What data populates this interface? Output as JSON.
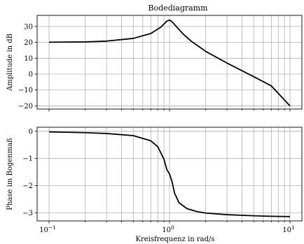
{
  "chart_data": [
    {
      "type": "line",
      "panel": "magnitude",
      "title": "Bodediagramm",
      "xlabel": "",
      "ylabel": "Amplitude in dB",
      "xscale": "log",
      "xlim": [
        0.1,
        10
      ],
      "ylim": [
        -22,
        37
      ],
      "yticks": [
        30,
        20,
        10,
        0,
        -10,
        -20
      ],
      "ytick_labels": [
        "30",
        "20",
        "10",
        "0",
        "−10",
        "−20"
      ],
      "grid": "on (major and minor)",
      "x": [
        0.1,
        0.2,
        0.3,
        0.5,
        0.7,
        0.85,
        0.95,
        1.0,
        1.05,
        1.15,
        1.3,
        1.5,
        2.0,
        3.0,
        5.0,
        7.0,
        10.0
      ],
      "y": [
        20.1,
        20.3,
        20.8,
        22.5,
        25.6,
        29.7,
        33.4,
        34.0,
        33.0,
        29.6,
        25.2,
        21.0,
        14.3,
        7.0,
        -1.6,
        -7.4,
        -20.0
      ]
    },
    {
      "type": "line",
      "panel": "phase",
      "title": "",
      "xlabel": "Kreisfrequenz in rad/s",
      "ylabel": "Phase im Bogenmaß",
      "xscale": "log",
      "xlim": [
        0.1,
        10
      ],
      "xtick_labels": [
        "10",
        "10",
        "10"
      ],
      "xtick_exponents": [
        "−1",
        "0",
        "1"
      ],
      "ylim": [
        -3.3,
        0.15
      ],
      "yticks": [
        0,
        -1,
        -2,
        -3
      ],
      "ytick_labels": [
        "0",
        "−1",
        "−2",
        "−3"
      ],
      "grid": "on (major and minor)",
      "x": [
        0.1,
        0.2,
        0.3,
        0.5,
        0.7,
        0.8,
        0.9,
        0.95,
        1.0,
        1.05,
        1.1,
        1.2,
        1.4,
        1.7,
        2.0,
        3.0,
        5.0,
        7.0,
        10.0
      ],
      "y": [
        -0.02,
        -0.05,
        -0.08,
        -0.16,
        -0.35,
        -0.57,
        -1.03,
        -1.41,
        -1.57,
        -1.86,
        -2.27,
        -2.63,
        -2.85,
        -2.96,
        -3.01,
        -3.07,
        -3.11,
        -3.13,
        -3.14
      ]
    }
  ]
}
